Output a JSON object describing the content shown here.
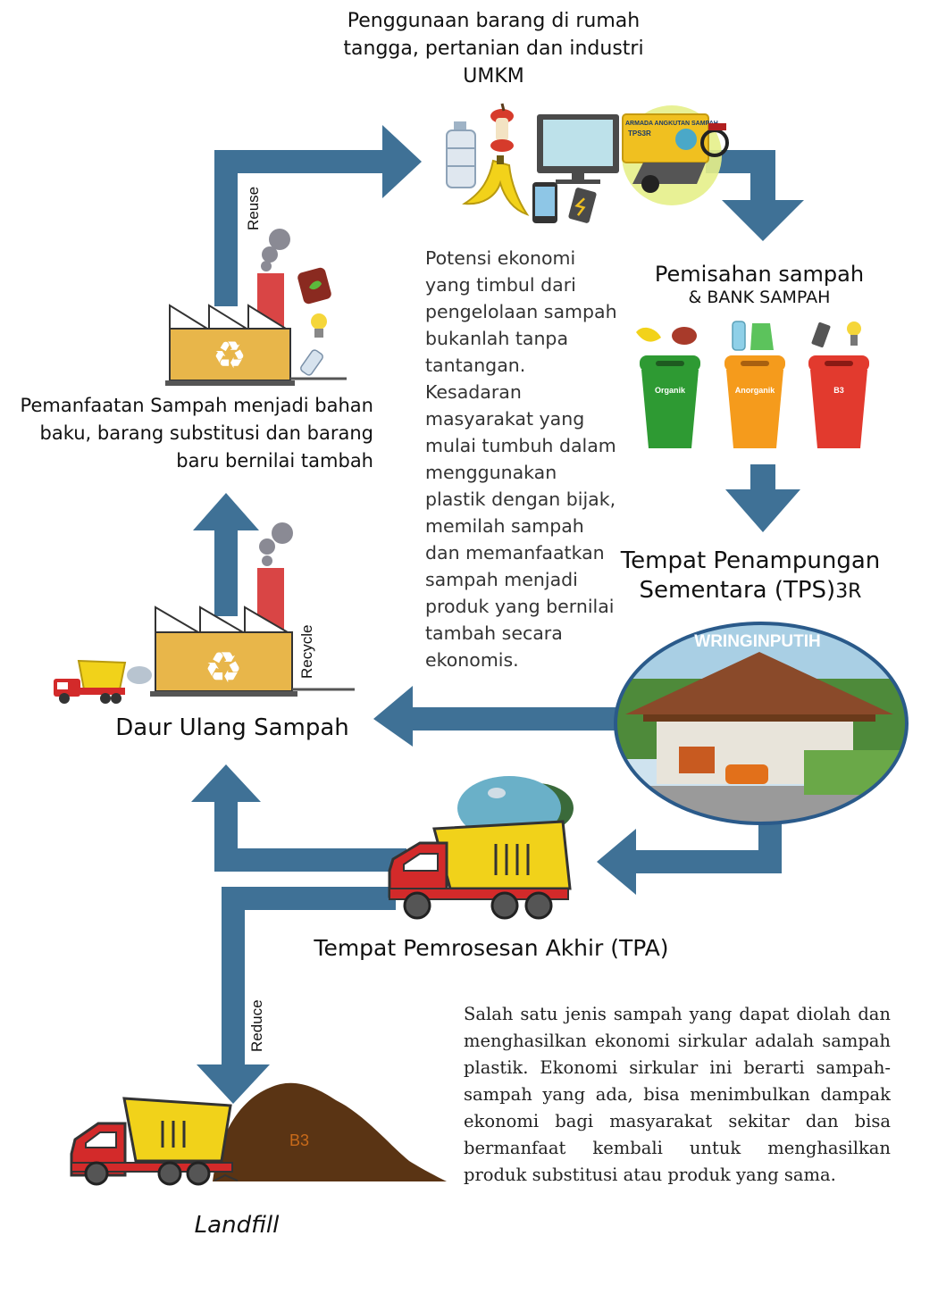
{
  "top": {
    "title": "Penggunaan barang di rumah tangga, pertanian dan industri UMKM",
    "truck_text_1": "ARMADA ANGKUTAN SAMPAH",
    "truck_text_2": "TPS3R"
  },
  "separation": {
    "title": "Pemisahan sampah",
    "subtitle": "& BANK SAMPAH",
    "bins": [
      {
        "label": "Organik",
        "color": "#2e9a33"
      },
      {
        "label": "Anorganik",
        "color": "#f59b1c"
      },
      {
        "label": "B3",
        "color": "#e23a2e"
      }
    ]
  },
  "tps": {
    "title": "Tempat Penampungan Sementara (TPS)",
    "suffix": "3R",
    "site_label": "WRINGINPUTIH"
  },
  "utilization": {
    "title": "Pemanfaatan Sampah menjadi bahan baku, barang substitusi dan barang baru bernilai tambah"
  },
  "recycle": {
    "title": "Daur Ulang Sampah"
  },
  "tpa": {
    "title": "Tempat Pemrosesan Akhir (TPA)"
  },
  "landfill": {
    "title": "Landfill",
    "pile_label": "B3"
  },
  "arrows": {
    "reuse": "Reuse",
    "recycle": "Recycle",
    "reduce": "Reduce"
  },
  "paragraphs": {
    "middle": "Potensi ekonomi yang timbul dari pengelolaan sampah bukanlah tanpa tantangan. Kesadaran masyarakat yang mulai tumbuh dalam menggunakan plastik dengan bijak, memilah sampah dan memanfaatkan sampah menjadi produk yang bernilai tambah secara ekonomis.",
    "bottom": "Salah satu jenis sampah yang dapat diolah dan menghasilkan ekonomi sirkular adalah sampah plastik. Ekonomi sirkular ini berarti sampah-sampah yang ada, bisa menimbulkan dampak ekonomi bagi masyarakat sekitar dan bisa bermanfaat kembali untuk menghasilkan produk substitusi atau produk yang sama."
  },
  "colors": {
    "arrow": "#3f7196",
    "factory_body": "#e8b64a",
    "chimney": "#d94545",
    "smoke": "#8a8a94"
  }
}
